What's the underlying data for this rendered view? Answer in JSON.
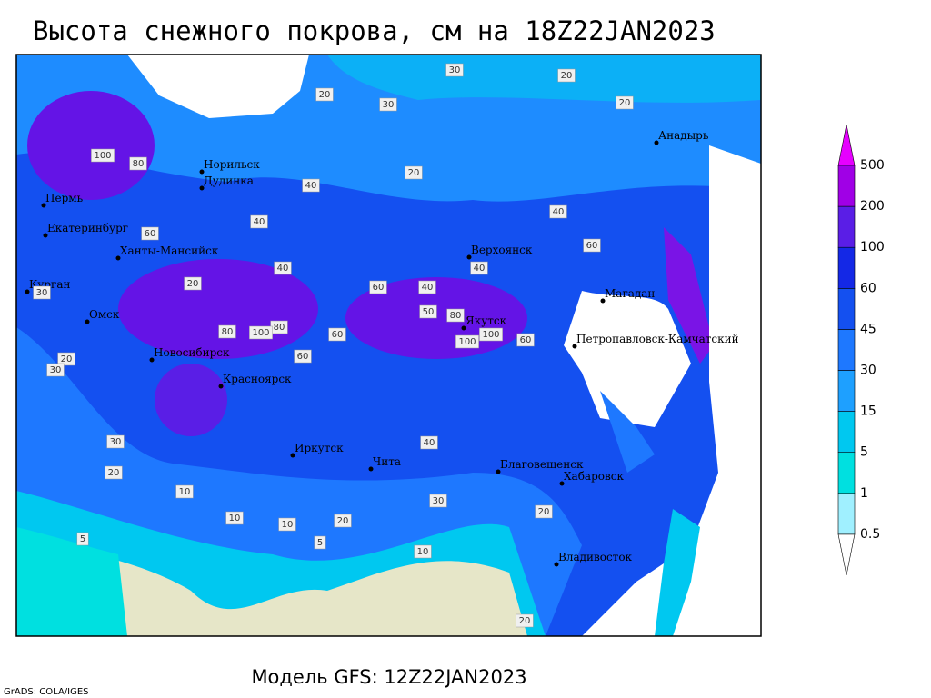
{
  "title": "Высота снежного покрова, см на 18Z22JAN2023",
  "footer": "Модель GFS: 12Z22JAN2023",
  "credit": "GrADS: COLA/IGES",
  "cities": [
    "Анадырь",
    "Норильск",
    "Дудинка",
    "Пермь",
    "Екатеринбург",
    "Ханты-Мансийск",
    "Верхоянск",
    "Курган",
    "Омск",
    "Магадан",
    "Якутск",
    "Петропавловск-Камчатский",
    "Новосибирск",
    "Красноярск",
    "Иркутск",
    "Чита",
    "Благовещенск",
    "Хабаровск",
    "Владивосток"
  ],
  "contour_labels": [
    30,
    20,
    30,
    20,
    20,
    20,
    40,
    100,
    80,
    60,
    40,
    20,
    40,
    60,
    40,
    80,
    80,
    60,
    60,
    100,
    50,
    80,
    100,
    100,
    60,
    60,
    40,
    40,
    30,
    20,
    30,
    30,
    20,
    10,
    5,
    10,
    20,
    10,
    5,
    10,
    20,
    30,
    40,
    20
  ],
  "legend": {
    "levels": [
      0.5,
      1,
      5,
      15,
      30,
      45,
      60,
      100,
      200,
      500
    ],
    "colors": [
      "#ffffff",
      "#a0f0ff",
      "#00e0e0",
      "#00c8f0",
      "#1ea0ff",
      "#1e78ff",
      "#1450f0",
      "#1428e6",
      "#5a1ee6",
      "#a000e6",
      "#e600ff"
    ]
  }
}
